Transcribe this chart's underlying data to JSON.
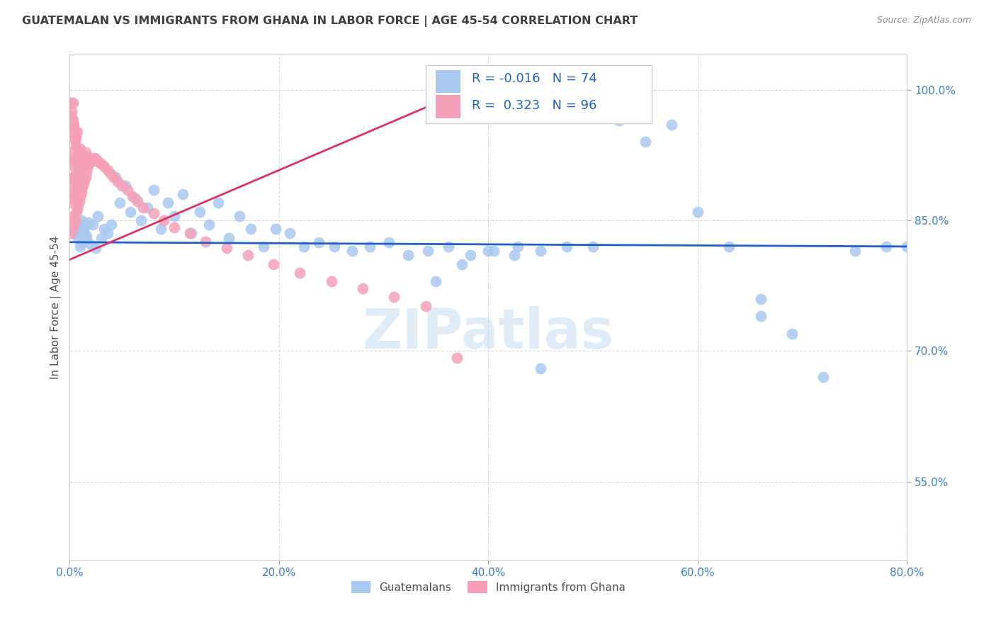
{
  "title": "GUATEMALAN VS IMMIGRANTS FROM GHANA IN LABOR FORCE | AGE 45-54 CORRELATION CHART",
  "source": "Source: ZipAtlas.com",
  "ylabel": "In Labor Force | Age 45-54",
  "xlim": [
    0.0,
    0.8
  ],
  "ylim": [
    0.46,
    1.04
  ],
  "blue_R": "-0.016",
  "blue_N": "74",
  "pink_R": "0.323",
  "pink_N": "96",
  "blue_color": "#a8c8f0",
  "pink_color": "#f5a0b8",
  "blue_line_color": "#2060c8",
  "pink_line_color": "#e03060",
  "legend_blue": "Guatemalans",
  "legend_pink": "Immigrants from Ghana",
  "watermark": "ZIPatlas",
  "background_color": "#ffffff",
  "grid_color": "#d8d8d8",
  "title_color": "#404040",
  "axis_label_color": "#505050",
  "tick_color": "#4080d0",
  "blue_x": [
    0.005,
    0.007,
    0.008,
    0.009,
    0.01,
    0.011,
    0.012,
    0.013,
    0.014,
    0.015,
    0.016,
    0.018,
    0.02,
    0.022,
    0.025,
    0.027,
    0.03,
    0.033,
    0.036,
    0.04,
    0.044,
    0.048,
    0.053,
    0.058,
    0.063,
    0.068,
    0.074,
    0.08,
    0.087,
    0.094,
    0.1,
    0.108,
    0.116,
    0.124,
    0.133,
    0.142,
    0.152,
    0.162,
    0.173,
    0.185,
    0.197,
    0.21,
    0.224,
    0.238,
    0.253,
    0.27,
    0.287,
    0.305,
    0.323,
    0.342,
    0.362,
    0.383,
    0.405,
    0.428,
    0.35,
    0.375,
    0.4,
    0.425,
    0.45,
    0.475,
    0.5,
    0.525,
    0.55,
    0.575,
    0.6,
    0.63,
    0.66,
    0.69,
    0.72,
    0.75,
    0.66,
    0.78,
    0.8,
    0.45
  ],
  "blue_y": [
    0.835,
    0.84,
    0.83,
    0.845,
    0.82,
    0.85,
    0.825,
    0.838,
    0.842,
    0.828,
    0.832,
    0.848,
    0.822,
    0.845,
    0.818,
    0.855,
    0.83,
    0.84,
    0.835,
    0.845,
    0.9,
    0.87,
    0.89,
    0.86,
    0.875,
    0.85,
    0.865,
    0.885,
    0.84,
    0.87,
    0.855,
    0.88,
    0.835,
    0.86,
    0.845,
    0.87,
    0.83,
    0.855,
    0.84,
    0.82,
    0.84,
    0.835,
    0.82,
    0.825,
    0.82,
    0.815,
    0.82,
    0.825,
    0.81,
    0.815,
    0.82,
    0.81,
    0.815,
    0.82,
    0.78,
    0.8,
    0.815,
    0.81,
    0.815,
    0.82,
    0.82,
    0.965,
    0.94,
    0.96,
    0.86,
    0.82,
    0.76,
    0.72,
    0.67,
    0.815,
    0.74,
    0.82,
    0.82,
    0.68
  ],
  "pink_x": [
    0.001,
    0.001,
    0.001,
    0.001,
    0.002,
    0.002,
    0.002,
    0.002,
    0.002,
    0.003,
    0.003,
    0.003,
    0.003,
    0.003,
    0.004,
    0.004,
    0.004,
    0.004,
    0.004,
    0.005,
    0.005,
    0.005,
    0.005,
    0.006,
    0.006,
    0.006,
    0.006,
    0.007,
    0.007,
    0.007,
    0.007,
    0.008,
    0.008,
    0.008,
    0.009,
    0.009,
    0.009,
    0.01,
    0.01,
    0.01,
    0.011,
    0.011,
    0.012,
    0.012,
    0.013,
    0.013,
    0.014,
    0.014,
    0.015,
    0.015,
    0.016,
    0.017,
    0.018,
    0.019,
    0.02,
    0.021,
    0.022,
    0.023,
    0.024,
    0.025,
    0.027,
    0.029,
    0.031,
    0.033,
    0.036,
    0.039,
    0.042,
    0.046,
    0.05,
    0.055,
    0.06,
    0.065,
    0.07,
    0.08,
    0.09,
    0.1,
    0.115,
    0.13,
    0.15,
    0.17,
    0.195,
    0.22,
    0.25,
    0.28,
    0.31,
    0.34,
    0.001,
    0.002,
    0.003,
    0.004,
    0.005,
    0.006,
    0.007,
    0.008,
    0.009,
    0.37
  ],
  "pink_y": [
    0.835,
    0.96,
    0.87,
    0.92,
    0.84,
    0.88,
    0.9,
    0.95,
    0.97,
    0.855,
    0.89,
    0.92,
    0.96,
    0.985,
    0.845,
    0.875,
    0.9,
    0.93,
    0.96,
    0.85,
    0.88,
    0.91,
    0.94,
    0.858,
    0.885,
    0.915,
    0.945,
    0.862,
    0.892,
    0.922,
    0.952,
    0.868,
    0.895,
    0.925,
    0.872,
    0.9,
    0.928,
    0.878,
    0.905,
    0.932,
    0.882,
    0.91,
    0.888,
    0.916,
    0.892,
    0.92,
    0.896,
    0.924,
    0.9,
    0.928,
    0.905,
    0.91,
    0.915,
    0.92,
    0.918,
    0.922,
    0.92,
    0.918,
    0.922,
    0.92,
    0.918,
    0.916,
    0.914,
    0.912,
    0.908,
    0.904,
    0.9,
    0.895,
    0.89,
    0.885,
    0.878,
    0.872,
    0.865,
    0.858,
    0.85,
    0.842,
    0.835,
    0.826,
    0.818,
    0.81,
    0.8,
    0.79,
    0.78,
    0.772,
    0.762,
    0.752,
    0.985,
    0.975,
    0.965,
    0.955,
    0.945,
    0.935,
    0.925,
    0.915,
    0.905,
    0.692
  ]
}
